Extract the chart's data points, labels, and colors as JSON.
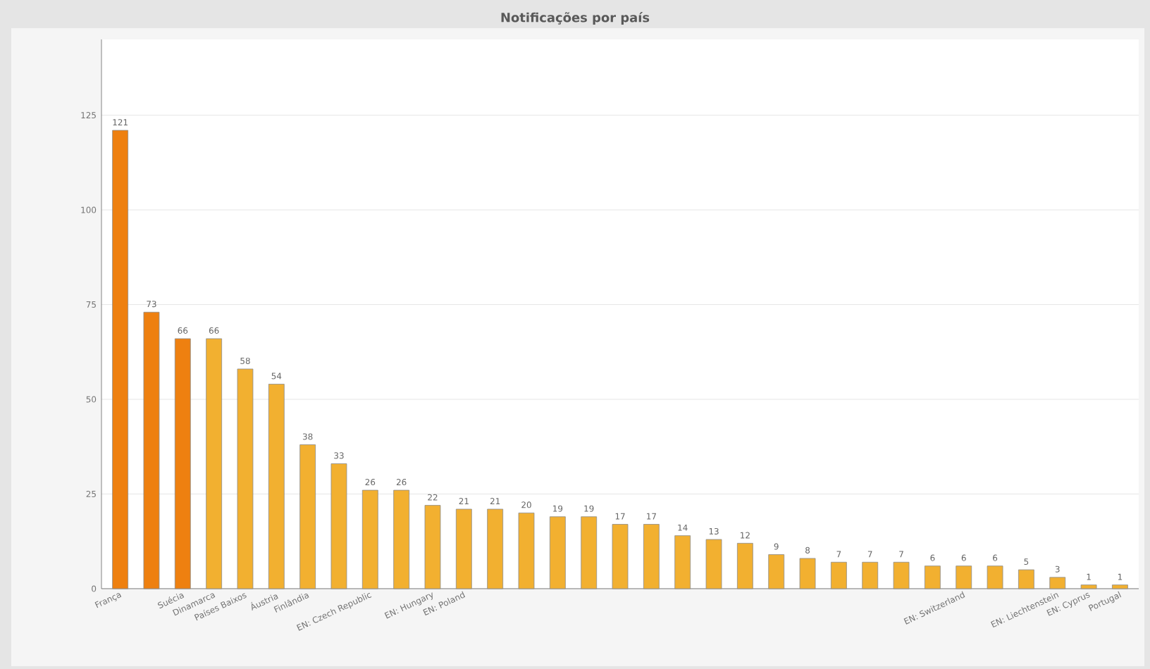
{
  "chart_data": {
    "type": "bar",
    "title": "Notificações por país",
    "categories": [
      "França",
      null,
      "Suécia",
      "Dinamarca",
      "Países Baixos",
      "Áustria",
      "Finlândia",
      null,
      "EN: Czech Republic",
      null,
      "EN: Hungary",
      "EN: Poland",
      null,
      null,
      null,
      null,
      null,
      null,
      null,
      null,
      null,
      null,
      null,
      null,
      null,
      null,
      null,
      "EN: Switzerland",
      null,
      null,
      "EN: Liechtenstein",
      "EN: Cyprus",
      "Portugal"
    ],
    "values": [
      121,
      73,
      66,
      66,
      58,
      54,
      38,
      33,
      26,
      26,
      22,
      21,
      21,
      20,
      19,
      19,
      17,
      17,
      14,
      13,
      12,
      9,
      8,
      7,
      7,
      7,
      6,
      6,
      6,
      5,
      3,
      1,
      1
    ],
    "colors": [
      "#ee8010",
      "#ee8010",
      "#ee8010",
      "#f2b030",
      "#f2b030",
      "#f2b030",
      "#f2b030",
      "#f2b030",
      "#f2b030",
      "#f2b030",
      "#f2b030",
      "#f2b030",
      "#f2b030",
      "#f2b030",
      "#f2b030",
      "#f2b030",
      "#f2b030",
      "#f2b030",
      "#f2b030",
      "#f2b030",
      "#f2b030",
      "#f2b030",
      "#f2b030",
      "#f2b030",
      "#f2b030",
      "#f2b030",
      "#f2b030",
      "#f2b030",
      "#f2b030",
      "#f2b030",
      "#f2b030",
      "#f2b030",
      "#f2b030"
    ],
    "ylim": [
      0,
      145
    ],
    "yticks": [
      0,
      25,
      50,
      75,
      100,
      125
    ],
    "grid": "y",
    "data_labels": true
  }
}
